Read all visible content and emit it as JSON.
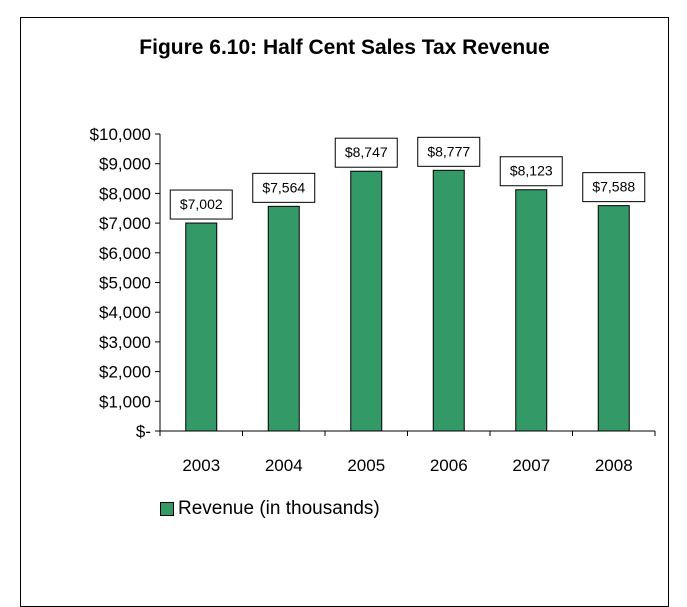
{
  "chart_data": {
    "type": "bar",
    "title": "Figure 6.10: Half Cent Sales Tax Revenue",
    "categories": [
      "2003",
      "2004",
      "2005",
      "2006",
      "2007",
      "2008"
    ],
    "series": [
      {
        "name": "Revenue (in thousands)",
        "values": [
          7002,
          7564,
          8747,
          8777,
          8123,
          7588
        ],
        "data_labels": [
          "$7,002",
          "$7,564",
          "$8,747",
          "$8,777",
          "$8,123",
          "$7,588"
        ],
        "color": "#339966"
      }
    ],
    "y_tick_labels": [
      "$-",
      "$1,000",
      "$2,000",
      "$3,000",
      "$4,000",
      "$5,000",
      "$6,000",
      "$7,000",
      "$8,000",
      "$9,000",
      "$10,000"
    ],
    "ylim": [
      0,
      10000
    ],
    "grid": false,
    "legend_position": "bottom-left"
  }
}
